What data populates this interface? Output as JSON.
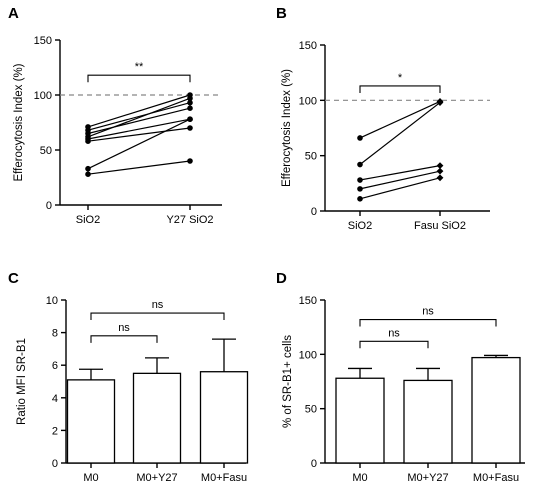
{
  "chart_data": [
    {
      "id": "A",
      "panel_label": "A",
      "type": "line",
      "subtype": "paired",
      "ylabel": "Efferocytosis Index (%)",
      "ylim": [
        0,
        150
      ],
      "yticks": [
        0,
        50,
        100,
        150
      ],
      "categories": [
        "SiO2",
        "Y27 SiO2"
      ],
      "reference_line": 100,
      "pairs": [
        [
          71,
          100
        ],
        [
          68,
          93
        ],
        [
          65,
          88
        ],
        [
          62,
          97
        ],
        [
          60,
          78
        ],
        [
          58,
          70
        ],
        [
          33,
          78
        ],
        [
          28,
          40
        ]
      ],
      "significance": [
        {
          "label": "**",
          "from": 0,
          "to": 1,
          "y": 118
        }
      ]
    },
    {
      "id": "B",
      "panel_label": "B",
      "type": "line",
      "subtype": "paired",
      "ylabel": "Efferocytosis Index (%)",
      "ylim": [
        0,
        150
      ],
      "yticks": [
        0,
        50,
        100,
        150
      ],
      "categories": [
        "SiO2",
        "Fasu SiO2"
      ],
      "reference_line": 100,
      "pairs": [
        [
          66,
          99
        ],
        [
          42,
          98
        ],
        [
          28,
          41
        ],
        [
          20,
          36
        ],
        [
          11,
          30
        ]
      ],
      "significance": [
        {
          "label": "*",
          "from": 0,
          "to": 1,
          "y": 113
        }
      ]
    },
    {
      "id": "C",
      "panel_label": "C",
      "type": "bar",
      "ylabel": "Ratio MFI SR-B1",
      "ylim": [
        0,
        10
      ],
      "yticks": [
        0,
        2,
        4,
        6,
        8,
        10
      ],
      "categories": [
        "M0",
        "M0+Y27",
        "M0+Fasu"
      ],
      "values": [
        5.1,
        5.5,
        5.6
      ],
      "errors": [
        0.65,
        0.95,
        2.0
      ],
      "significance": [
        {
          "label": "ns",
          "from": 0,
          "to": 1,
          "y": 7.8
        },
        {
          "label": "ns",
          "from": 0,
          "to": 2,
          "y": 9.2
        }
      ]
    },
    {
      "id": "D",
      "panel_label": "D",
      "type": "bar",
      "ylabel": "% of SR-B1+ cells",
      "ylim": [
        0,
        150
      ],
      "yticks": [
        0,
        50,
        100,
        150
      ],
      "categories": [
        "M0",
        "M0+Y27",
        "M0+Fasu"
      ],
      "values": [
        78,
        76,
        97
      ],
      "errors": [
        9,
        11,
        2
      ],
      "significance": [
        {
          "label": "ns",
          "from": 0,
          "to": 1,
          "y": 112
        },
        {
          "label": "ns",
          "from": 0,
          "to": 2,
          "y": 132
        }
      ]
    }
  ]
}
